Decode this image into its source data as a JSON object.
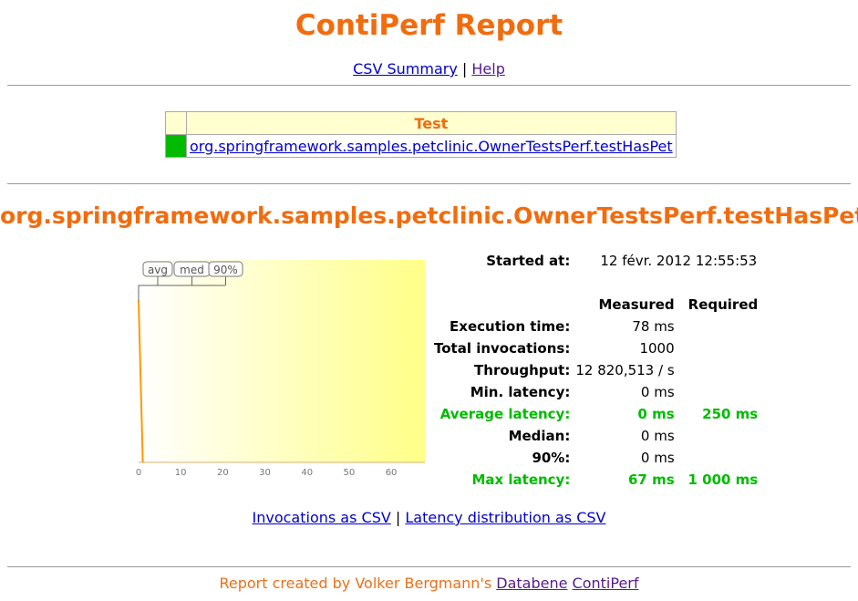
{
  "title": "ContiPerf Report",
  "links": {
    "csv": "CSV Summary",
    "sep": "|",
    "help": "Help"
  },
  "test_table": {
    "header": "Test",
    "rows": [
      {
        "status_color": "#00bb00",
        "name": "org.springframework.samples.petclinic.OwnerTestsPerf.testHasPet"
      }
    ]
  },
  "test_title": "org.springframework.samples.petclinic.OwnerTestsPerf.testHasPet",
  "started": {
    "label": "Started at:",
    "value": "12 févr. 2012 12:55:53"
  },
  "stats": {
    "col_measured": "Measured",
    "col_required": "Required",
    "rows": [
      {
        "label": "Execution time:",
        "measured": "78 ms",
        "required": "",
        "highlight": false
      },
      {
        "label": "Total invocations:",
        "measured": "1000",
        "required": "",
        "highlight": false
      },
      {
        "label": "Throughput:",
        "measured": "12 820,513 / s",
        "required": "",
        "highlight": false
      },
      {
        "label": "Min. latency:",
        "measured": "0 ms",
        "required": "",
        "highlight": false
      },
      {
        "label": "Average latency:",
        "measured": "0 ms",
        "required": "250 ms",
        "highlight": true
      },
      {
        "label": "Median:",
        "measured": "0 ms",
        "required": "",
        "highlight": false
      },
      {
        "label": "90%:",
        "measured": "0 ms",
        "required": "",
        "highlight": false
      },
      {
        "label": "Max latency:",
        "measured": "67 ms",
        "required": "1 000 ms",
        "highlight": true
      }
    ]
  },
  "chart_data": {
    "type": "line",
    "xlim": [
      0,
      68
    ],
    "x_ticks": [
      "0",
      "10",
      "20",
      "30",
      "40",
      "50",
      "60"
    ],
    "markers": [
      "avg",
      "med",
      "90%"
    ],
    "series": [
      {
        "x": [
          0,
          1
        ],
        "y": [
          0.8,
          0
        ]
      }
    ],
    "line_color": "#ff9900",
    "background": "gradient white→#ffff88"
  },
  "bottom_links": {
    "invocations": "Invocations as CSV",
    "sep": "|",
    "distribution": "Latency distribution as CSV"
  },
  "footer": {
    "text": "Report created by Volker Bergmann's ",
    "databene": "Databene",
    "contiperf": "ContiPerf"
  }
}
